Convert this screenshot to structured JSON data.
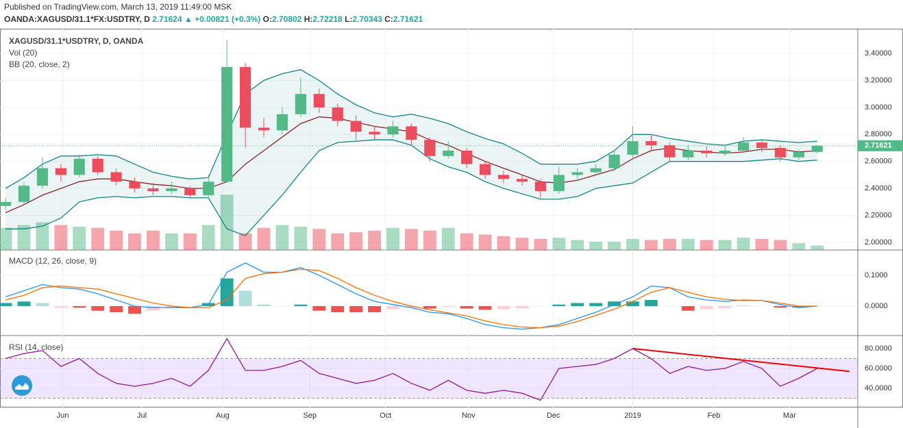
{
  "header": {
    "published": "Published on TradingView.com, March 13, 2019 11:49:00 MSK",
    "symbol": "OANDA:XAGUSD/31.1*FX:USDTRY, D",
    "last": "2.71624",
    "arrow": "▲",
    "change": "+0.00821 (+0.3%)",
    "ohlc": [
      {
        "label": "O:",
        "value": "2.70802"
      },
      {
        "label": "H:",
        "value": "2.72218"
      },
      {
        "label": "L:",
        "value": "2.70343"
      },
      {
        "label": "C:",
        "value": "2.71621"
      }
    ]
  },
  "chart_data": {
    "type": "candlestick",
    "title": "XAGUSD/31.1*USDTRY, D, OANDA",
    "x": [
      0,
      1,
      2,
      3,
      4,
      5,
      6,
      7,
      8,
      9,
      10,
      11,
      12,
      13,
      14,
      15,
      16,
      17,
      18,
      19,
      20,
      21,
      22,
      23,
      24,
      25,
      26,
      27,
      28,
      29,
      30,
      31,
      32,
      33,
      34,
      35,
      36,
      37,
      38,
      39,
      40,
      41,
      42,
      43,
      44
    ],
    "xlim": [
      -0.3,
      46.2
    ],
    "xticks": [
      {
        "value": 3.1,
        "label": "Jun"
      },
      {
        "value": 7.39,
        "label": "Jul"
      },
      {
        "value": 11.77,
        "label": "Aug"
      },
      {
        "value": 16.5,
        "label": "Sep"
      },
      {
        "value": 20.6,
        "label": "Oct"
      },
      {
        "value": 25.1,
        "label": "Nov"
      },
      {
        "value": 29.7,
        "label": "Dec"
      },
      {
        "value": 34.0,
        "label": "2019"
      },
      {
        "value": 38.4,
        "label": "Feb"
      },
      {
        "value": 42.5,
        "label": "Mar"
      }
    ],
    "open": [
      2.27,
      2.3,
      2.42,
      2.55,
      2.5,
      2.62,
      2.52,
      2.45,
      2.4,
      2.38,
      2.4,
      2.35,
      2.45,
      3.3,
      2.85,
      2.83,
      2.95,
      3.1,
      3.0,
      2.9,
      2.82,
      2.8,
      2.86,
      2.76,
      2.64,
      2.68,
      2.58,
      2.5,
      2.47,
      2.45,
      2.38,
      2.5,
      2.52,
      2.55,
      2.65,
      2.75,
      2.72,
      2.63,
      2.68,
      2.66,
      2.68,
      2.74,
      2.7,
      2.63,
      2.67
    ],
    "high": [
      2.33,
      2.45,
      2.63,
      2.58,
      2.65,
      2.64,
      2.55,
      2.48,
      2.44,
      2.45,
      2.42,
      2.5,
      3.5,
      3.33,
      2.92,
      3.0,
      3.22,
      3.14,
      3.03,
      2.94,
      2.86,
      2.9,
      2.88,
      2.78,
      2.75,
      2.7,
      2.6,
      2.53,
      2.5,
      2.47,
      2.56,
      2.55,
      2.58,
      2.68,
      2.86,
      2.8,
      2.74,
      2.72,
      2.71,
      2.72,
      2.78,
      2.76,
      2.72,
      2.69,
      2.72
    ],
    "low": [
      2.24,
      2.28,
      2.4,
      2.45,
      2.48,
      2.5,
      2.42,
      2.37,
      2.35,
      2.36,
      2.33,
      2.34,
      2.44,
      2.7,
      2.78,
      2.8,
      2.93,
      2.96,
      2.86,
      2.76,
      2.76,
      2.78,
      2.72,
      2.6,
      2.62,
      2.55,
      2.47,
      2.44,
      2.42,
      2.33,
      2.36,
      2.47,
      2.49,
      2.53,
      2.63,
      2.68,
      2.6,
      2.61,
      2.63,
      2.64,
      2.66,
      2.67,
      2.6,
      2.61,
      2.66
    ],
    "close": [
      2.3,
      2.42,
      2.55,
      2.5,
      2.62,
      2.52,
      2.45,
      2.4,
      2.38,
      2.4,
      2.35,
      2.45,
      3.3,
      2.85,
      2.83,
      2.95,
      3.1,
      3.0,
      2.9,
      2.82,
      2.8,
      2.86,
      2.76,
      2.64,
      2.68,
      2.58,
      2.5,
      2.47,
      2.45,
      2.38,
      2.5,
      2.52,
      2.55,
      2.65,
      2.75,
      2.72,
      2.63,
      2.68,
      2.66,
      2.68,
      2.74,
      2.7,
      2.63,
      2.67,
      2.71621
    ],
    "ylim": [
      1.944,
      3.583
    ],
    "yticks": [
      {
        "value": 2.0,
        "label": "2.00000"
      },
      {
        "value": 2.2,
        "label": "2.20000"
      },
      {
        "value": 2.4,
        "label": "2.40000"
      },
      {
        "value": 2.6,
        "label": "2.60000"
      },
      {
        "value": 2.8,
        "label": "2.80000"
      },
      {
        "value": 3.0,
        "label": "3.00000"
      },
      {
        "value": 3.2,
        "label": "3.20000"
      },
      {
        "value": 3.4,
        "label": "3.40000"
      }
    ],
    "last_price": 2.71621,
    "colors": {
      "up": "#53b987",
      "down": "#eb4d5c",
      "grid": "#f0f3fa"
    },
    "volume": {
      "name": "Vol (20)",
      "ylim": [
        0,
        400
      ],
      "values": [
        40,
        45,
        50,
        45,
        42,
        40,
        35,
        30,
        35,
        30,
        30,
        45,
        100,
        30,
        40,
        45,
        42,
        38,
        30,
        32,
        35,
        40,
        38,
        35,
        40,
        30,
        28,
        25,
        22,
        20,
        22,
        18,
        15,
        15,
        20,
        18,
        20,
        20,
        18,
        18,
        22,
        20,
        18,
        12,
        8
      ]
    },
    "bb": {
      "name": "BB (20, close, 2)",
      "line_color": "#138484",
      "basis_color": "#872323",
      "upper": [
        2.4,
        2.48,
        2.58,
        2.64,
        2.64,
        2.65,
        2.64,
        2.58,
        2.52,
        2.49,
        2.47,
        2.48,
        2.8,
        3.1,
        3.2,
        3.25,
        3.28,
        3.2,
        3.1,
        3.02,
        2.96,
        2.93,
        2.95,
        2.92,
        2.88,
        2.82,
        2.77,
        2.73,
        2.66,
        2.58,
        2.58,
        2.58,
        2.6,
        2.68,
        2.8,
        2.8,
        2.77,
        2.75,
        2.73,
        2.72,
        2.75,
        2.76,
        2.75,
        2.74,
        2.75
      ],
      "basis": [
        2.22,
        2.28,
        2.35,
        2.4,
        2.45,
        2.47,
        2.47,
        2.45,
        2.43,
        2.42,
        2.4,
        2.4,
        2.45,
        2.58,
        2.68,
        2.78,
        2.88,
        2.93,
        2.92,
        2.89,
        2.86,
        2.84,
        2.82,
        2.76,
        2.72,
        2.66,
        2.6,
        2.55,
        2.5,
        2.45,
        2.44,
        2.46,
        2.5,
        2.54,
        2.62,
        2.68,
        2.7,
        2.68,
        2.67,
        2.66,
        2.67,
        2.69,
        2.69,
        2.67,
        2.68
      ],
      "lower": [
        2.1,
        2.1,
        2.12,
        2.18,
        2.3,
        2.33,
        2.34,
        2.33,
        2.34,
        2.34,
        2.33,
        2.33,
        2.1,
        2.05,
        2.2,
        2.35,
        2.52,
        2.68,
        2.74,
        2.75,
        2.76,
        2.76,
        2.72,
        2.62,
        2.56,
        2.52,
        2.45,
        2.4,
        2.36,
        2.32,
        2.32,
        2.34,
        2.4,
        2.42,
        2.44,
        2.52,
        2.6,
        2.6,
        2.6,
        2.6,
        2.6,
        2.61,
        2.62,
        2.6,
        2.61
      ]
    },
    "macd": {
      "name": "MACD (12, 26, close, 9)",
      "macd_color": "#2196f3",
      "signal_color": "#ff6d00",
      "ylim": [
        -0.0956,
        0.1822
      ],
      "yticks": [
        {
          "value": 0,
          "label": "0.0000"
        },
        {
          "value": 0.1,
          "label": "0.1000"
        }
      ],
      "macd": [
        0.03,
        0.05,
        0.07,
        0.06,
        0.055,
        0.04,
        0.02,
        0.0,
        -0.005,
        -0.005,
        -0.005,
        0.005,
        0.11,
        0.14,
        0.11,
        0.11,
        0.125,
        0.1,
        0.07,
        0.04,
        0.015,
        0.005,
        -0.005,
        -0.02,
        -0.025,
        -0.04,
        -0.06,
        -0.07,
        -0.075,
        -0.07,
        -0.06,
        -0.04,
        -0.02,
        0.005,
        0.03,
        0.065,
        0.06,
        0.03,
        0.02,
        0.015,
        0.02,
        0.018,
        0.005,
        -0.005,
        0.0
      ],
      "signal": [
        0.02,
        0.035,
        0.06,
        0.065,
        0.06,
        0.055,
        0.04,
        0.025,
        0.01,
        0.0,
        -0.005,
        -0.005,
        0.02,
        0.09,
        0.105,
        0.11,
        0.12,
        0.115,
        0.09,
        0.06,
        0.035,
        0.015,
        0.0,
        -0.012,
        -0.022,
        -0.032,
        -0.048,
        -0.06,
        -0.068,
        -0.07,
        -0.065,
        -0.05,
        -0.03,
        -0.01,
        0.015,
        0.045,
        0.06,
        0.045,
        0.03,
        0.022,
        0.018,
        0.018,
        0.01,
        0.0,
        0.0
      ],
      "histogram": [
        0.01,
        0.015,
        0.01,
        -0.005,
        -0.005,
        -0.015,
        -0.02,
        -0.025,
        -0.015,
        -0.005,
        0,
        0.01,
        0.09,
        0.05,
        0.005,
        0,
        0.005,
        -0.015,
        -0.02,
        -0.02,
        -0.02,
        -0.01,
        -0.005,
        -0.008,
        -0.003,
        -0.008,
        -0.012,
        -0.01,
        -0.007,
        0,
        0.005,
        0.01,
        0.01,
        0.015,
        0.015,
        0.02,
        0,
        -0.015,
        -0.01,
        -0.007,
        0.002,
        0,
        -0.005,
        -0.005,
        0
      ]
    },
    "rsi": {
      "name": "RSI (14, close)",
      "color": "#8e1599",
      "band": [
        30,
        70
      ],
      "band_color": "#9b59f2",
      "ylim": [
        20.7,
        93.1
      ],
      "yticks": [
        {
          "value": 40,
          "label": "40.0000"
        },
        {
          "value": 60,
          "label": "60.0000"
        },
        {
          "value": 80,
          "label": "80.0000"
        }
      ],
      "values": [
        70,
        75,
        78,
        62,
        70,
        55,
        45,
        42,
        45,
        50,
        42,
        58,
        90,
        58,
        58,
        62,
        68,
        55,
        50,
        45,
        48,
        55,
        45,
        38,
        48,
        38,
        35,
        38,
        35,
        28,
        60,
        62,
        64,
        70,
        80,
        70,
        55,
        62,
        58,
        60,
        67,
        60,
        42,
        50,
        60
      ],
      "trendline": {
        "x": [
          34,
          45.75
        ],
        "y": [
          80,
          57
        ],
        "color": "#f00000"
      }
    }
  }
}
